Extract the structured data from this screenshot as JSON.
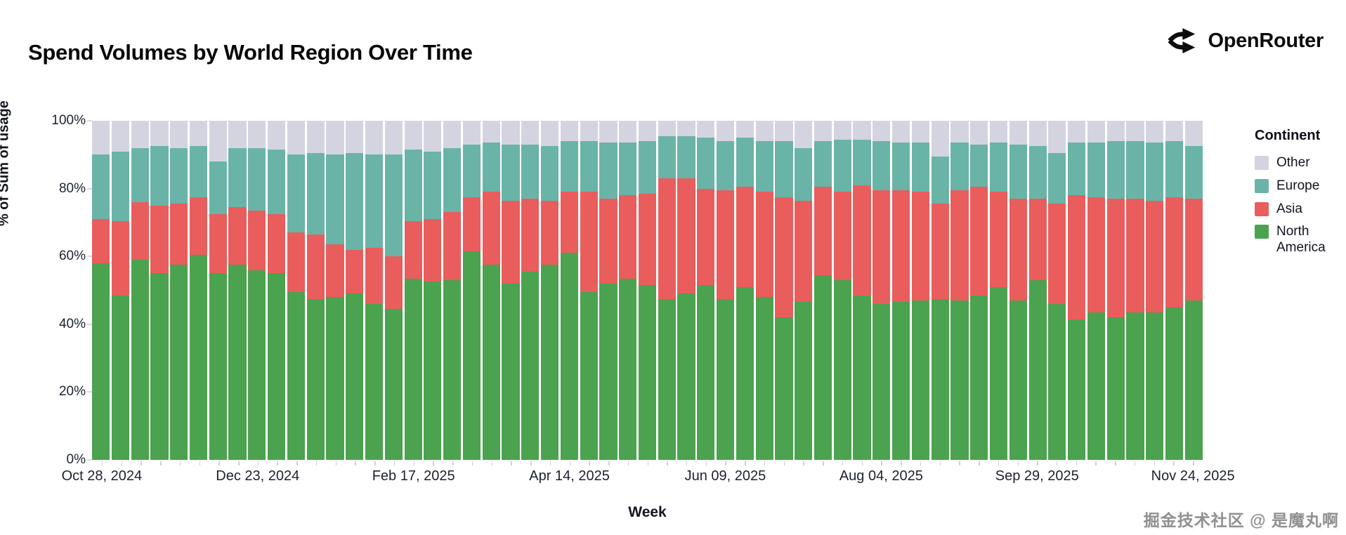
{
  "title": "Spend Volumes by World Region Over Time",
  "brand": {
    "name": "OpenRouter",
    "icon": "branching-route-arrows",
    "color": "#0c0c0c"
  },
  "legend": {
    "title": "Continent",
    "items": [
      {
        "key": "other",
        "label": "Other",
        "color": "#d4d4e1"
      },
      {
        "key": "europe",
        "label": "Europe",
        "color": "#69b4a7"
      },
      {
        "key": "asia",
        "label": "Asia",
        "color": "#e95d5d"
      },
      {
        "key": "north_america",
        "label": "North America",
        "color": "#4ba24f"
      }
    ]
  },
  "axes": {
    "y_title": "% of Sum of usage",
    "x_title": "Week",
    "y_ticks": [
      {
        "label": "0%",
        "value": 0
      },
      {
        "label": "20%",
        "value": 20
      },
      {
        "label": "40%",
        "value": 40
      },
      {
        "label": "60%",
        "value": 60
      },
      {
        "label": "80%",
        "value": 80
      },
      {
        "label": "100%",
        "value": 100
      }
    ],
    "x_tick_labels": [
      {
        "bar_index": 0,
        "label": "Oct 28, 2024"
      },
      {
        "bar_index": 8,
        "label": "Dec 23, 2024"
      },
      {
        "bar_index": 16,
        "label": "Feb 17, 2025"
      },
      {
        "bar_index": 24,
        "label": "Apr 14, 2025"
      },
      {
        "bar_index": 32,
        "label": "Jun 09, 2025"
      },
      {
        "bar_index": 40,
        "label": "Aug 04, 2025"
      },
      {
        "bar_index": 48,
        "label": "Sep 29, 2025"
      },
      {
        "bar_index": 56,
        "label": "Nov 24, 2025"
      }
    ]
  },
  "watermark": "掘金技术社区 @ 是魔丸啊",
  "chart_data": {
    "type": "bar",
    "stacked": true,
    "normalized": "percent",
    "title": "Spend Volumes by World Region Over Time",
    "xlabel": "Week",
    "ylabel": "% of Sum of usage",
    "ylim": [
      0,
      100
    ],
    "grid": false,
    "legend_position": "right",
    "stack_order_bottom_to_top": [
      "North America",
      "Asia",
      "Europe",
      "Other"
    ],
    "x": [
      "Oct 28, 2024",
      "Nov 04, 2024",
      "Nov 11, 2024",
      "Nov 18, 2024",
      "Nov 25, 2024",
      "Dec 02, 2024",
      "Dec 09, 2024",
      "Dec 16, 2024",
      "Dec 23, 2024",
      "Dec 30, 2024",
      "Jan 06, 2025",
      "Jan 13, 2025",
      "Jan 20, 2025",
      "Jan 27, 2025",
      "Feb 03, 2025",
      "Feb 10, 2025",
      "Feb 17, 2025",
      "Feb 24, 2025",
      "Mar 03, 2025",
      "Mar 10, 2025",
      "Mar 17, 2025",
      "Mar 24, 2025",
      "Mar 31, 2025",
      "Apr 07, 2025",
      "Apr 14, 2025",
      "Apr 21, 2025",
      "Apr 28, 2025",
      "May 05, 2025",
      "May 12, 2025",
      "May 19, 2025",
      "May 26, 2025",
      "Jun 02, 2025",
      "Jun 09, 2025",
      "Jun 16, 2025",
      "Jun 23, 2025",
      "Jun 30, 2025",
      "Jul 07, 2025",
      "Jul 14, 2025",
      "Jul 21, 2025",
      "Jul 28, 2025",
      "Aug 04, 2025",
      "Aug 11, 2025",
      "Aug 18, 2025",
      "Aug 25, 2025",
      "Sep 01, 2025",
      "Sep 08, 2025",
      "Sep 15, 2025",
      "Sep 22, 2025",
      "Sep 29, 2025",
      "Oct 06, 2025",
      "Oct 13, 2025",
      "Oct 20, 2025",
      "Oct 27, 2025",
      "Nov 03, 2025",
      "Nov 10, 2025",
      "Nov 17, 2025",
      "Nov 24, 2025"
    ],
    "series": [
      {
        "name": "North America",
        "key": "north_america",
        "color": "#4ba24f",
        "values": [
          58,
          48.5,
          59,
          55,
          57.5,
          60.5,
          55,
          57.5,
          56,
          55,
          49.5,
          47.5,
          48,
          49,
          46,
          44.5,
          53.5,
          52.5,
          53,
          61.5,
          57.5,
          52,
          55.5,
          57.5,
          61,
          49.5,
          52,
          53.5,
          51.5,
          47.5,
          49,
          51.5,
          47.5,
          51,
          48,
          42,
          46.5,
          54.5,
          53,
          48.5,
          46,
          46.5,
          47,
          47.5,
          47,
          48.5,
          51,
          47,
          53,
          46,
          41.5,
          43.5,
          42,
          43.5,
          43.5,
          45,
          47
        ]
      },
      {
        "name": "Asia",
        "key": "asia",
        "color": "#e95d5d",
        "values": [
          13,
          22,
          17,
          20,
          18,
          17,
          17.5,
          17,
          17.5,
          17.5,
          17.5,
          19,
          15.5,
          13,
          16.5,
          15.5,
          17,
          18.5,
          20,
          16,
          21.5,
          24.5,
          21.5,
          19,
          18,
          29.5,
          25,
          24.5,
          27,
          35.5,
          34,
          28.5,
          32,
          29.5,
          31,
          35.5,
          30,
          26,
          26,
          32.5,
          33.5,
          33,
          32,
          28,
          32.5,
          32,
          28,
          30,
          24,
          29.5,
          36.5,
          34,
          35,
          33.5,
          33,
          32.5,
          30
        ]
      },
      {
        "name": "Europe",
        "key": "europe",
        "color": "#69b4a7",
        "values": [
          19,
          20.5,
          16,
          17.5,
          16.5,
          15,
          15.5,
          17.5,
          18.5,
          19,
          23,
          24,
          26.5,
          28.5,
          27.5,
          30,
          21,
          20,
          19,
          15.5,
          14.5,
          16.5,
          16,
          16,
          15,
          15,
          16.5,
          15.5,
          15.5,
          12.5,
          12.5,
          15,
          14.5,
          14.5,
          15,
          16.5,
          15.5,
          13.5,
          15.5,
          13.5,
          14.5,
          14,
          14.5,
          14,
          14,
          12.5,
          14.5,
          16,
          15.5,
          15,
          15.5,
          16,
          17,
          17,
          17,
          16.5,
          15.5
        ]
      },
      {
        "name": "Other",
        "key": "other",
        "color": "#d4d4e1",
        "values": [
          10,
          9,
          8,
          7.5,
          8,
          7.5,
          12,
          8,
          8,
          8.5,
          10,
          9.5,
          10,
          9.5,
          10,
          10,
          8.5,
          9,
          8,
          7,
          6.5,
          7,
          7,
          7.5,
          6,
          6,
          6.5,
          6.5,
          6,
          4.5,
          4.5,
          5,
          6,
          5,
          6,
          6,
          8,
          6,
          5.5,
          5.5,
          6,
          6.5,
          6.5,
          10.5,
          6.5,
          7,
          6.5,
          7,
          7.5,
          9.5,
          6.5,
          6.5,
          6,
          6,
          6.5,
          6,
          7.5
        ]
      }
    ]
  }
}
